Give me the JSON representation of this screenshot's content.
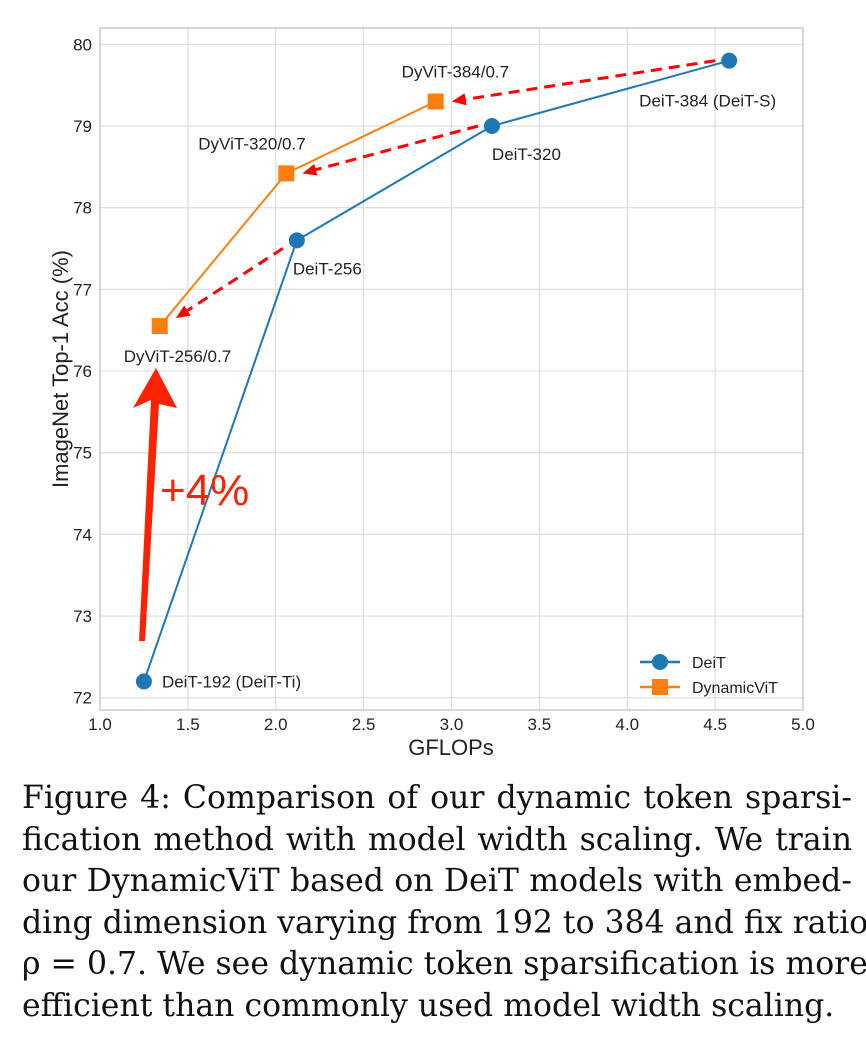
{
  "chart_data": {
    "type": "line",
    "xlabel": "GFLOPs",
    "ylabel": "ImageNet Top-1 Acc (%)",
    "xlim": [
      1.0,
      5.0
    ],
    "ylim": [
      71.85,
      80.2
    ],
    "xticks": [
      "1.0",
      "1.5",
      "2.0",
      "2.5",
      "3.0",
      "3.5",
      "4.0",
      "4.5",
      "5.0"
    ],
    "yticks": [
      "72",
      "73",
      "74",
      "75",
      "76",
      "77",
      "78",
      "79",
      "80"
    ],
    "grid": true,
    "legend_position": "bottom-right",
    "series": [
      {
        "name": "DeiT",
        "color": "#1f77b4",
        "marker": "circle",
        "x": [
          1.25,
          2.12,
          3.23,
          4.58
        ],
        "y": [
          72.2,
          77.6,
          79.0,
          79.8
        ],
        "labels": [
          "DeiT-192 (DeiT-Ti)",
          "DeiT-256",
          "DeiT-320",
          "DeiT-384 (DeiT-S)"
        ]
      },
      {
        "name": "DynamicViT",
        "color": "#ff7f0e",
        "marker": "square",
        "x": [
          1.34,
          2.06,
          2.91
        ],
        "y": [
          76.55,
          78.42,
          79.3
        ],
        "labels": [
          "DyViT-256/0.7",
          "DyViT-320/0.7",
          "DyViT-384/0.7"
        ]
      }
    ],
    "annotations": {
      "gain_label": "+4%",
      "arrow_color": "#ff0000",
      "gain_arrow_color": "#ff2200"
    }
  },
  "caption": {
    "lines": [
      "Figure 4: Comparison of our dynamic token sparsi-",
      "fication method with model width scaling. We train",
      "our DynamicViT based on DeiT models with embed-",
      "ding dimension varying from 192 to 384 and fix ratio",
      "ρ = 0.7. We see dynamic token sparsification is more",
      "efficient than commonly used model width scaling."
    ]
  }
}
